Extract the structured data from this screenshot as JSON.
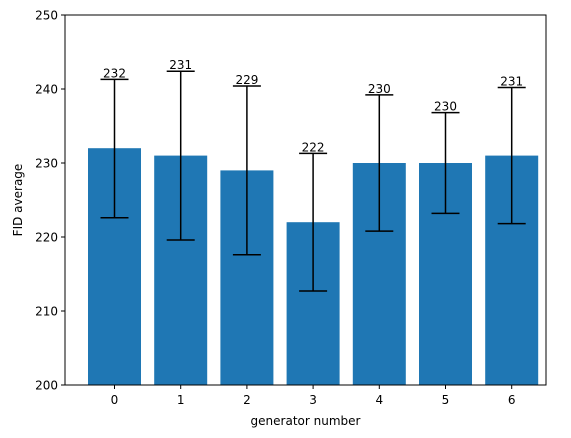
{
  "chart_data": {
    "type": "bar",
    "title": "",
    "xlabel": "generator number",
    "ylabel": "FID average",
    "categories": [
      "0",
      "1",
      "2",
      "3",
      "4",
      "5",
      "6"
    ],
    "values": [
      232,
      231,
      229,
      222,
      230,
      230,
      231
    ],
    "error_low": [
      222.6,
      219.6,
      217.6,
      212.7,
      220.8,
      223.2,
      221.8
    ],
    "error_high": [
      241.3,
      242.4,
      240.4,
      231.3,
      239.2,
      236.8,
      240.2
    ],
    "data_labels": [
      "232",
      "231",
      "229",
      "222",
      "230",
      "230",
      "231"
    ],
    "ylim": [
      200,
      250
    ],
    "yticks": [
      "200",
      "210",
      "220",
      "230",
      "240",
      "250"
    ],
    "grid": false,
    "bar_color": "#1f77b4",
    "error_color": "#000000"
  }
}
